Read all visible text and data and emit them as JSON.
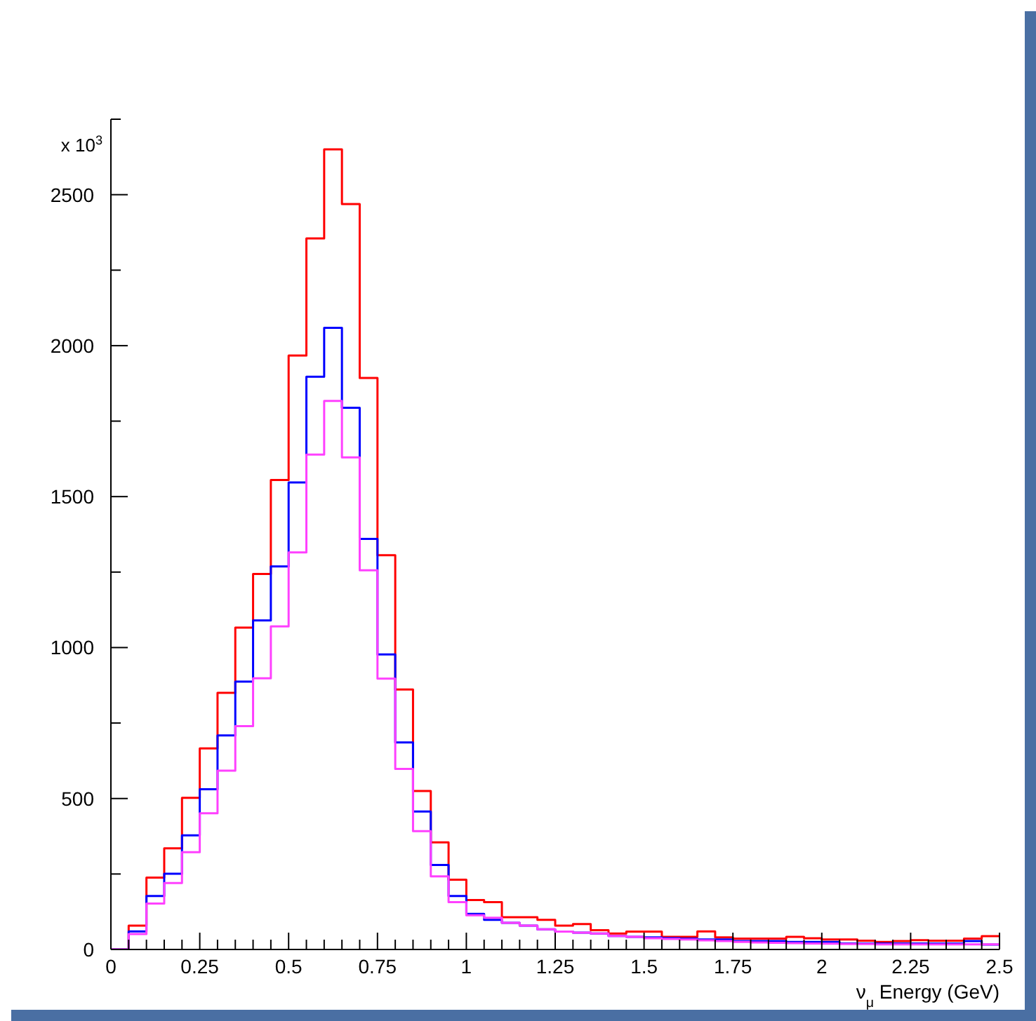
{
  "chart_data": {
    "type": "histogram",
    "xlabel": "ν$_{μ}$ Energy (GeV)",
    "ylabel": "x 10$^{3}$",
    "bins": [
      0,
      0.05,
      0.1,
      0.15,
      0.2,
      0.25,
      0.3,
      0.35,
      0.4,
      0.45,
      0.5,
      0.55,
      0.6,
      0.65,
      0.7,
      0.75,
      0.8,
      0.85,
      0.9,
      0.95,
      1,
      1.05,
      1.1,
      1.15,
      1.2,
      1.25,
      1.3,
      1.35,
      1.4,
      1.45,
      1.5,
      1.55,
      1.6,
      1.65,
      1.7,
      1.75,
      1.8,
      1.85,
      1.9,
      1.95,
      2,
      2.05,
      2.1,
      2.15,
      2.2,
      2.25,
      2.3,
      2.35,
      2.4,
      2.45,
      2.5
    ],
    "series": [
      {
        "color": "#ff0000",
        "values": [
          0,
          79,
          238,
          335,
          502,
          666,
          850,
          1066,
          1244,
          1555,
          1967,
          2355,
          2650,
          2469,
          1893,
          1306,
          861,
          525,
          355,
          231,
          164,
          157,
          107,
          107,
          98,
          79,
          84,
          64,
          53,
          59,
          59,
          42,
          42,
          60,
          40,
          36,
          36,
          36,
          42,
          37,
          33,
          33,
          29,
          25,
          28,
          31,
          29,
          29,
          36,
          44
        ]
      },
      {
        "color": "#0000ff",
        "values": [
          0,
          60,
          177,
          251,
          378,
          531,
          709,
          887,
          1090,
          1269,
          1547,
          1897,
          2059,
          1794,
          1360,
          977,
          686,
          457,
          280,
          177,
          118,
          98,
          88,
          79,
          67,
          59,
          56,
          53,
          45,
          42,
          40,
          38,
          36,
          33,
          33,
          28,
          28,
          28,
          25,
          25,
          25,
          20,
          20,
          20,
          20,
          20,
          20,
          20,
          28,
          16
        ]
      },
      {
        "color": "#ff40ff",
        "values": [
          0,
          51,
          152,
          220,
          322,
          451,
          592,
          740,
          898,
          1070,
          1315,
          1639,
          1817,
          1630,
          1256,
          897,
          598,
          392,
          242,
          157,
          113,
          105,
          88,
          79,
          67,
          59,
          56,
          53,
          45,
          42,
          37,
          35,
          33,
          30,
          28,
          25,
          23,
          22,
          21,
          20,
          19,
          18,
          18,
          17,
          17,
          17,
          17,
          17,
          17,
          17
        ]
      }
    ],
    "xlim": [
      0,
      2.5
    ],
    "ylim": [
      0,
      2750
    ],
    "xticks": [
      0,
      {
        "value": 0.05,
        "label": null
      },
      {
        "value": 0.1,
        "label": null
      },
      {
        "value": 0.15,
        "label": null
      },
      {
        "value": 0.2,
        "label": null
      },
      0.25,
      {
        "value": 0.3,
        "label": null
      },
      {
        "value": 0.35,
        "label": null
      },
      {
        "value": 0.4,
        "label": null
      },
      {
        "value": 0.45,
        "label": null
      },
      0.5,
      {
        "value": 0.55,
        "label": null
      },
      {
        "value": 0.6,
        "label": null
      },
      {
        "value": 0.65,
        "label": null
      },
      {
        "value": 0.7,
        "label": null
      },
      0.75,
      {
        "value": 0.8,
        "label": null
      },
      {
        "value": 0.85,
        "label": null
      },
      {
        "value": 0.9,
        "label": null
      },
      {
        "value": 0.95,
        "label": null
      },
      1,
      {
        "value": 1.05,
        "label": null
      },
      {
        "value": 1.1,
        "label": null
      },
      {
        "value": 1.15,
        "label": null
      },
      {
        "value": 1.2,
        "label": null
      },
      1.25,
      {
        "value": 1.3,
        "label": null
      },
      {
        "value": 1.35,
        "label": null
      },
      {
        "value": 1.4,
        "label": null
      },
      {
        "value": 1.45,
        "label": null
      },
      1.5,
      {
        "value": 1.55,
        "label": null
      },
      {
        "value": 1.6,
        "label": null
      },
      {
        "value": 1.65,
        "label": null
      },
      {
        "value": 1.7,
        "label": null
      },
      1.75,
      {
        "value": 1.8,
        "label": null
      },
      {
        "value": 1.85,
        "label": null
      },
      {
        "value": 1.9,
        "label": null
      },
      {
        "value": 1.95,
        "label": null
      },
      2,
      {
        "value": 2.05,
        "label": null
      },
      {
        "value": 2.1,
        "label": null
      },
      {
        "value": 2.15,
        "label": null
      },
      {
        "value": 2.2,
        "label": null
      },
      2.25,
      {
        "value": 2.3,
        "label": null
      },
      {
        "value": 2.35,
        "label": null
      },
      {
        "value": 2.4,
        "label": null
      },
      {
        "value": 2.45,
        "label": null
      },
      2.5
    ],
    "yticks": [
      0,
      {
        "value": 250,
        "label": null
      },
      500,
      {
        "value": 750,
        "label": null
      },
      1000,
      {
        "value": 1250,
        "label": null
      },
      1500,
      {
        "value": 1750,
        "label": null
      },
      2000,
      {
        "value": 2250,
        "label": null
      },
      2500,
      {
        "value": 2750,
        "label": null
      }
    ]
  }
}
